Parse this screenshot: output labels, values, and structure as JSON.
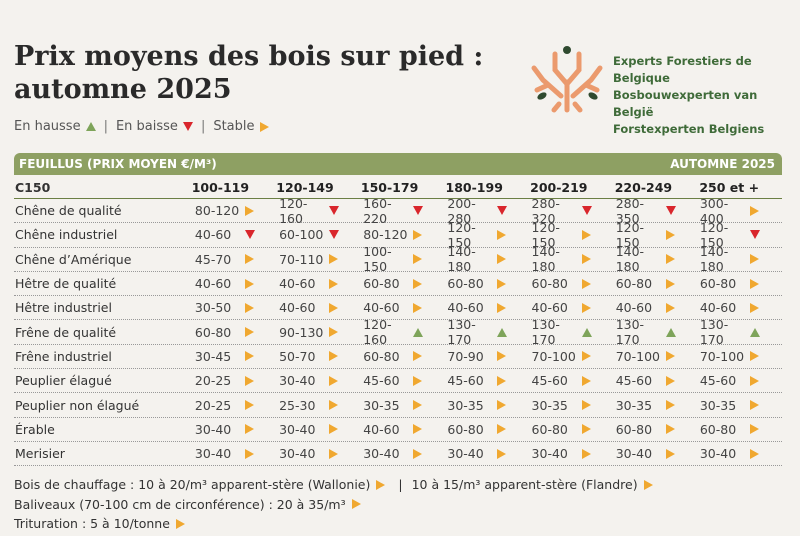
{
  "title_line1": "Prix moyens des bois sur pied :",
  "title_line2": "automne 2025",
  "legend": [
    {
      "label": "En hausse",
      "trend": "up"
    },
    {
      "label": "En baisse",
      "trend": "down"
    },
    {
      "label": "Stable",
      "trend": "stable"
    }
  ],
  "legend_sep": "|",
  "org_names": [
    "Experts Forestiers de Belgique",
    "Bosbouwexperten van België",
    "Forstexperten Belgiens"
  ],
  "colors": {
    "up": "#7ea45a",
    "down": "#d9262c",
    "stable": "#f0a830",
    "header": "#8ea063",
    "org": "#3f6b39",
    "logo": "#eb9a6d"
  },
  "table": {
    "header_left": "FEUILLUS (PRIX MOYEN €/M³)",
    "header_right": "AUTOMNE 2025",
    "columns": [
      "C150",
      "100-119",
      "120-149",
      "150-179",
      "180-199",
      "200-219",
      "220-249",
      "250 et +"
    ],
    "rows": [
      {
        "name": "Chêne de qualité",
        "cells": [
          [
            "80-120",
            "stable"
          ],
          [
            "120-160",
            "down"
          ],
          [
            "160-220",
            "down"
          ],
          [
            "200-280",
            "down"
          ],
          [
            "280-320",
            "down"
          ],
          [
            "280-350",
            "down"
          ],
          [
            "300-400",
            "stable"
          ]
        ]
      },
      {
        "name": "Chêne industriel",
        "cells": [
          [
            "40-60",
            "down"
          ],
          [
            "60-100",
            "down"
          ],
          [
            "80-120",
            "stable"
          ],
          [
            "120-150",
            "stable"
          ],
          [
            "120-150",
            "stable"
          ],
          [
            "120-150",
            "stable"
          ],
          [
            "120-150",
            "down"
          ]
        ]
      },
      {
        "name": "Chêne d’Amérique",
        "cells": [
          [
            "45-70",
            "stable"
          ],
          [
            "70-110",
            "stable"
          ],
          [
            "100-150",
            "stable"
          ],
          [
            "140-180",
            "stable"
          ],
          [
            "140-180",
            "stable"
          ],
          [
            "140-180",
            "stable"
          ],
          [
            "140-180",
            "stable"
          ]
        ]
      },
      {
        "name": "Hêtre de qualité",
        "cells": [
          [
            "40-60",
            "stable"
          ],
          [
            "40-60",
            "stable"
          ],
          [
            "60-80",
            "stable"
          ],
          [
            "60-80",
            "stable"
          ],
          [
            "60-80",
            "stable"
          ],
          [
            "60-80",
            "stable"
          ],
          [
            "60-80",
            "stable"
          ]
        ]
      },
      {
        "name": "Hêtre industriel",
        "cells": [
          [
            "30-50",
            "stable"
          ],
          [
            "40-60",
            "stable"
          ],
          [
            "40-60",
            "stable"
          ],
          [
            "40-60",
            "stable"
          ],
          [
            "40-60",
            "stable"
          ],
          [
            "40-60",
            "stable"
          ],
          [
            "40-60",
            "stable"
          ]
        ]
      },
      {
        "name": "Frêne de qualité",
        "cells": [
          [
            "60-80",
            "stable"
          ],
          [
            "90-130",
            "stable"
          ],
          [
            "120-160",
            "up"
          ],
          [
            "130-170",
            "up"
          ],
          [
            "130-170",
            "up"
          ],
          [
            "130-170",
            "up"
          ],
          [
            "130-170",
            "up"
          ]
        ]
      },
      {
        "name": "Frêne industriel",
        "cells": [
          [
            "30-45",
            "stable"
          ],
          [
            "50-70",
            "stable"
          ],
          [
            "60-80",
            "stable"
          ],
          [
            "70-90",
            "stable"
          ],
          [
            "70-100",
            "stable"
          ],
          [
            "70-100",
            "stable"
          ],
          [
            "70-100",
            "stable"
          ]
        ]
      },
      {
        "name": "Peuplier élagué",
        "cells": [
          [
            "20-25",
            "stable"
          ],
          [
            "30-40",
            "stable"
          ],
          [
            "45-60",
            "stable"
          ],
          [
            "45-60",
            "stable"
          ],
          [
            "45-60",
            "stable"
          ],
          [
            "45-60",
            "stable"
          ],
          [
            "45-60",
            "stable"
          ]
        ]
      },
      {
        "name": "Peuplier non élagué",
        "cells": [
          [
            "20-25",
            "stable"
          ],
          [
            "25-30",
            "stable"
          ],
          [
            "30-35",
            "stable"
          ],
          [
            "30-35",
            "stable"
          ],
          [
            "30-35",
            "stable"
          ],
          [
            "30-35",
            "stable"
          ],
          [
            "30-35",
            "stable"
          ]
        ]
      },
      {
        "name": "Érable",
        "cells": [
          [
            "30-40",
            "stable"
          ],
          [
            "30-40",
            "stable"
          ],
          [
            "40-60",
            "stable"
          ],
          [
            "60-80",
            "stable"
          ],
          [
            "60-80",
            "stable"
          ],
          [
            "60-80",
            "stable"
          ],
          [
            "60-80",
            "stable"
          ]
        ]
      },
      {
        "name": "Merisier",
        "cells": [
          [
            "30-40",
            "stable"
          ],
          [
            "30-40",
            "stable"
          ],
          [
            "30-40",
            "stable"
          ],
          [
            "30-40",
            "stable"
          ],
          [
            "30-40",
            "stable"
          ],
          [
            "30-40",
            "stable"
          ],
          [
            "30-40",
            "stable"
          ]
        ]
      }
    ]
  },
  "notes": {
    "line1_a": "Bois de chauffage : 10 à 20/m³ apparent-stère (Wallonie)",
    "line1_sep": "|",
    "line1_b": "10 à 15/m³ apparent-stère (Flandre)",
    "line2": "Baliveaux (70-100 cm de circonférence) : 20 à 35/m³",
    "line3": "Trituration : 5 à 10/tonne"
  }
}
